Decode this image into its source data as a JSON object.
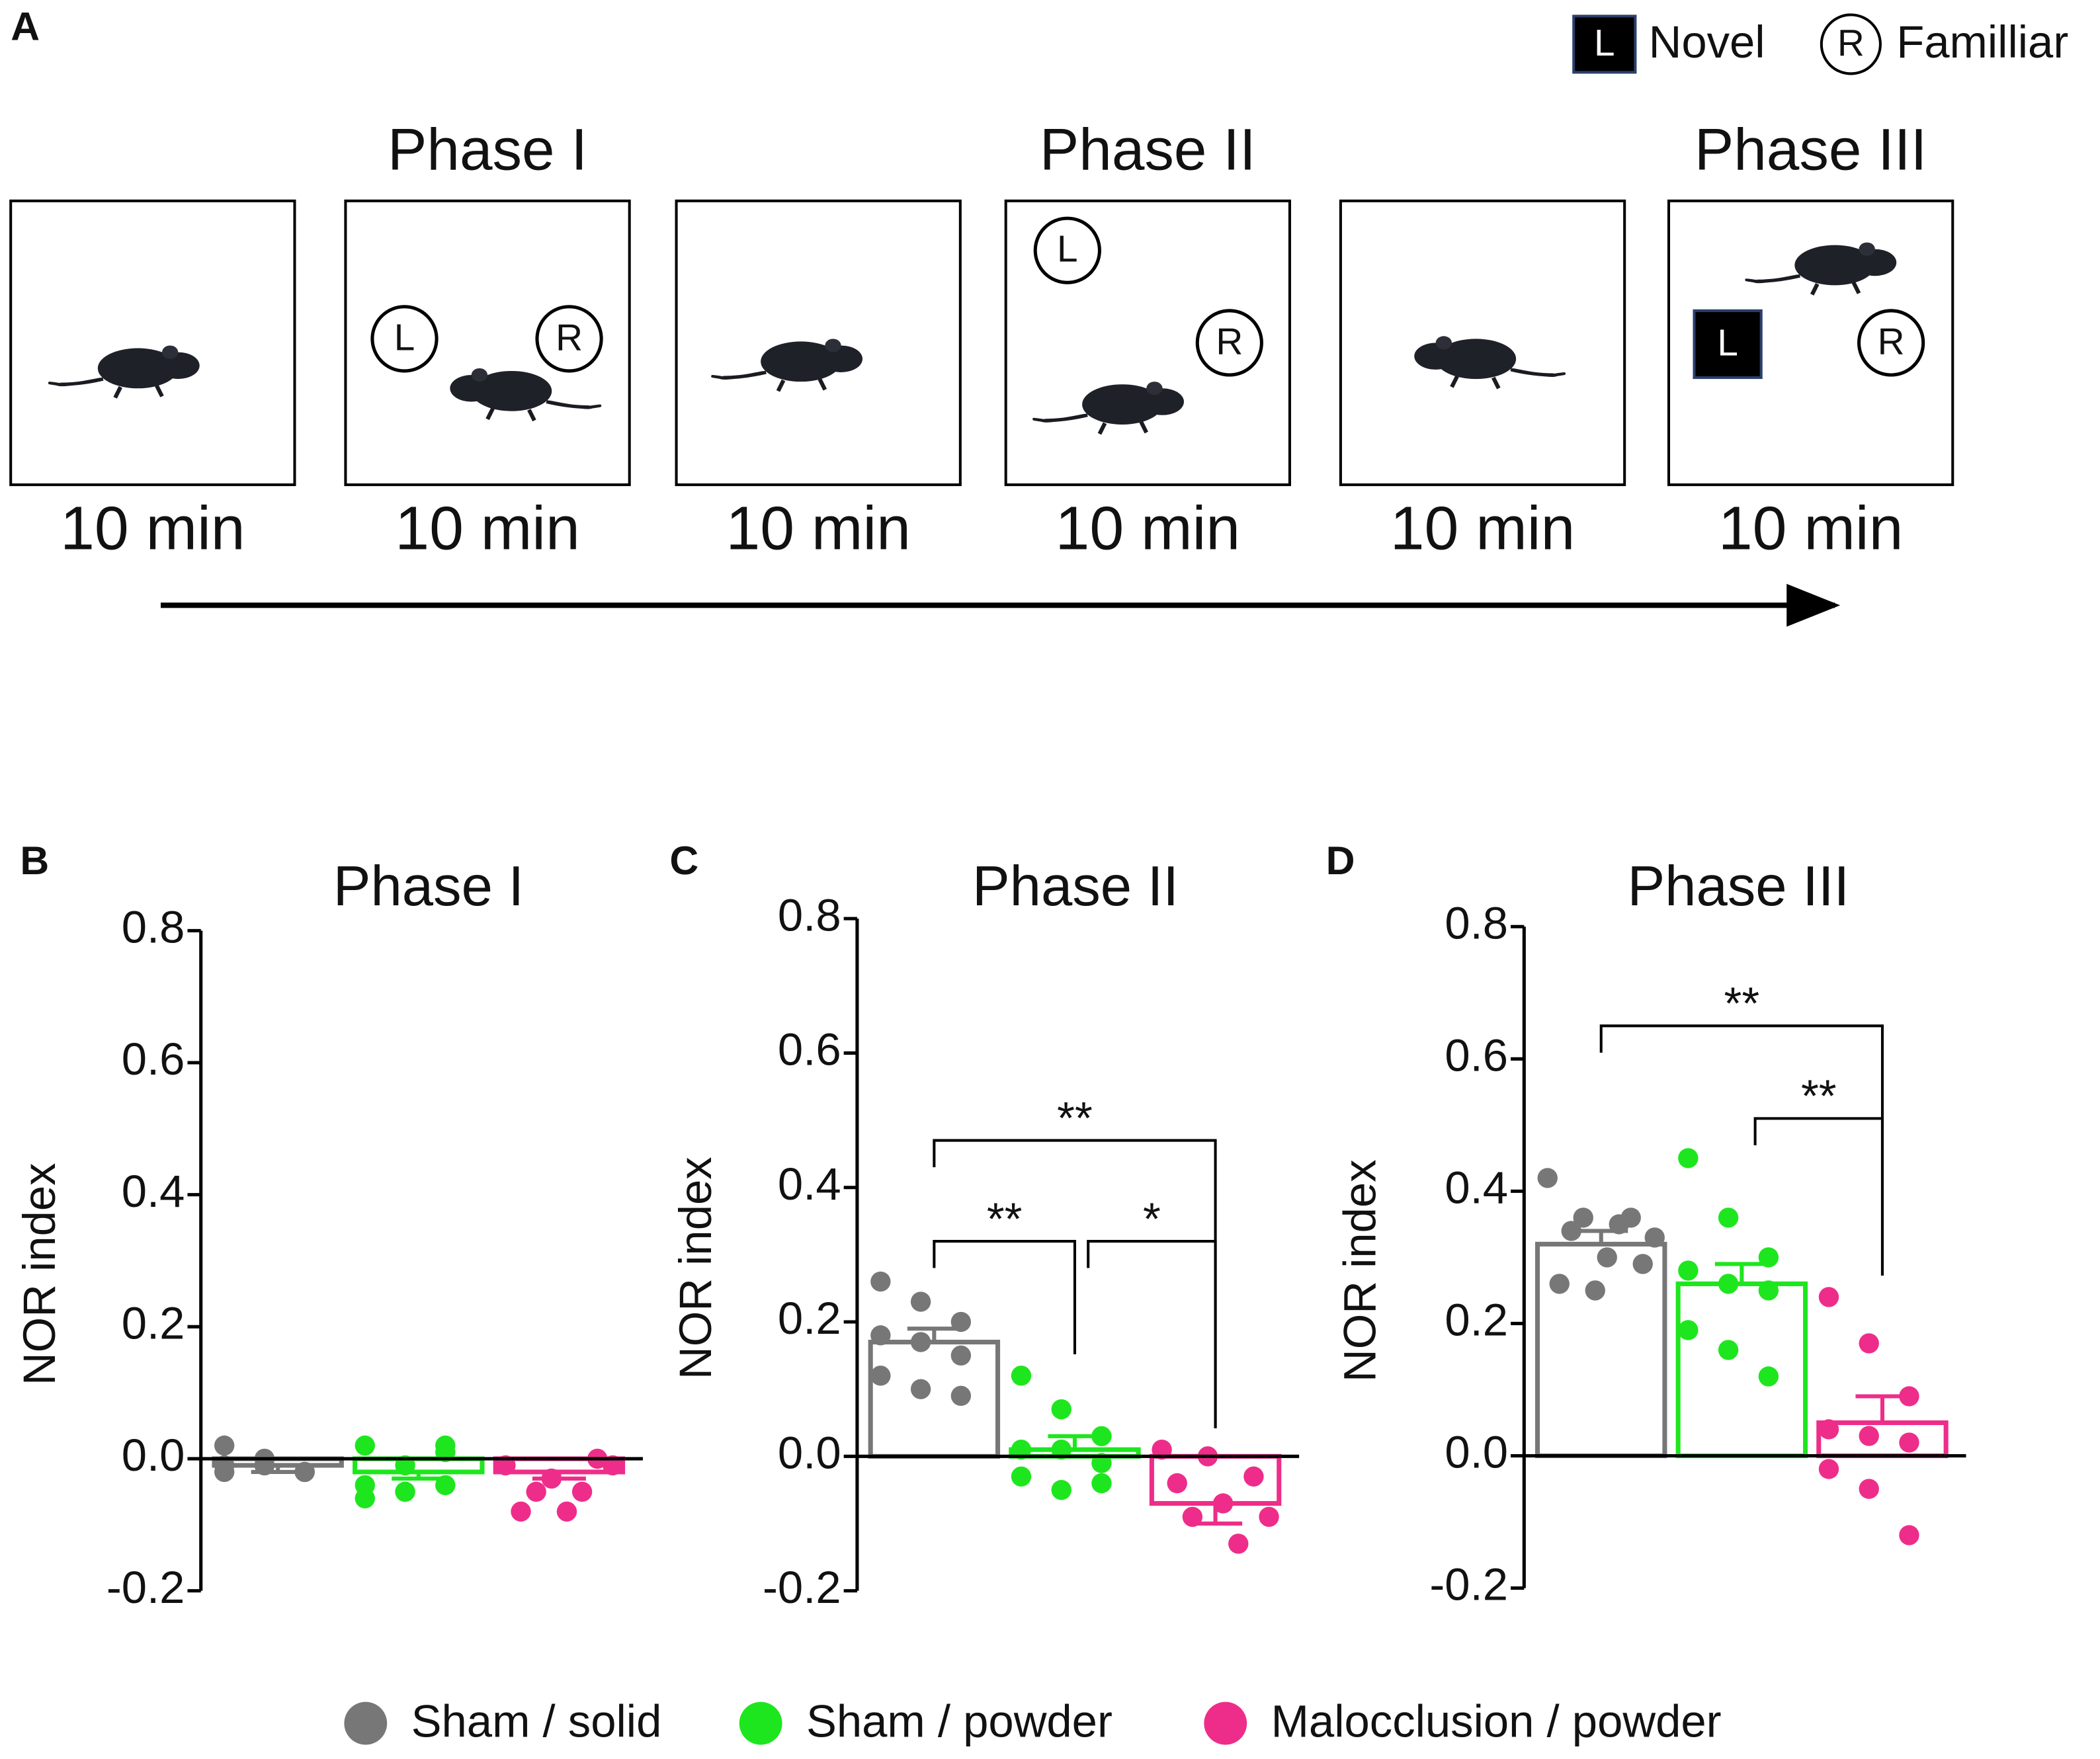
{
  "diagram": {
    "panel": "A",
    "legend": [
      {
        "symbol": "L",
        "label": "Novel",
        "shape": "square"
      },
      {
        "symbol": "R",
        "label": "Familliar",
        "shape": "circle"
      }
    ],
    "phases": [
      "Phase I",
      "Phase II",
      "Phase III"
    ],
    "boxes": [
      {
        "duration": "10 min",
        "objects": []
      },
      {
        "duration": "10 min",
        "objects": [
          {
            "label": "L",
            "shape": "circle"
          },
          {
            "label": "R",
            "shape": "circle"
          }
        ]
      },
      {
        "duration": "10 min",
        "objects": []
      },
      {
        "duration": "10 min",
        "objects": [
          {
            "label": "L",
            "shape": "circle"
          },
          {
            "label": "R",
            "shape": "circle"
          }
        ]
      },
      {
        "duration": "10 min",
        "objects": []
      },
      {
        "duration": "10 min",
        "objects": [
          {
            "label": "L",
            "shape": "square"
          },
          {
            "label": "R",
            "shape": "circle"
          }
        ]
      }
    ]
  },
  "legend": [
    {
      "name": "Sham / solid",
      "color": "#777777"
    },
    {
      "name": "Sham / powder",
      "color": "#1ee61e"
    },
    {
      "name": "Malocclusion / powder",
      "color": "#ee2d8a"
    }
  ],
  "chart_data": [
    {
      "type": "bar",
      "panel": "B",
      "title": "Phase I",
      "ylabel": "NOR index",
      "ylim": [
        -0.2,
        0.8
      ],
      "yticks": [
        -0.2,
        {
          "value": 0,
          "label": "0.0"
        },
        0.2,
        0.4,
        0.6,
        0.8
      ],
      "series": [
        {
          "values": [
            -0.01
          ],
          "errors": [
            0.01
          ],
          "points": [
            -0.02,
            -0.01,
            -0.02,
            -0.01,
            0,
            -0.02,
            0.02,
            -0.01,
            -0.02
          ]
        },
        {
          "values": [
            -0.02
          ],
          "errors": [
            0.01
          ],
          "points": [
            -0.06,
            -0.01,
            0.02,
            -0.04,
            -0.05,
            -0.04,
            0.02,
            -0.05,
            0.01
          ]
        },
        {
          "values": [
            -0.02
          ],
          "errors": [
            0.01
          ],
          "points": [
            -0.01,
            -0.03,
            0,
            -0.08,
            -0.08,
            -0.01,
            -0.05,
            -0.05
          ]
        }
      ],
      "annotations": []
    },
    {
      "type": "bar",
      "panel": "C",
      "title": "Phase II",
      "ylabel": "NOR index",
      "ylim": [
        -0.2,
        0.8
      ],
      "yticks": [
        -0.2,
        {
          "value": 0,
          "label": "0.0"
        },
        0.2,
        0.4,
        0.6,
        0.8
      ],
      "series": [
        {
          "values": [
            0.17
          ],
          "errors": [
            0.02
          ],
          "points": [
            0.26,
            0.23,
            0.2,
            0.18,
            0.17,
            0.15,
            0.12,
            0.1,
            0.09
          ]
        },
        {
          "values": [
            0.01
          ],
          "errors": [
            0.02
          ],
          "points": [
            0.12,
            0.07,
            0.03,
            0.01,
            0.01,
            -0.01,
            -0.03,
            -0.05,
            -0.04
          ]
        },
        {
          "values": [
            -0.07
          ],
          "errors": [
            0.03
          ],
          "points": [
            0.01,
            0,
            -0.03,
            -0.04,
            -0.07,
            -0.09,
            -0.09,
            -0.13
          ]
        }
      ],
      "annotations": [
        {
          "label": "**",
          "from": 0,
          "to": 2,
          "y": 0.47
        },
        {
          "label": "**",
          "from": 0,
          "to": 1,
          "y": 0.32
        },
        {
          "label": "*",
          "from": 1,
          "to": 2,
          "y": 0.32
        }
      ]
    },
    {
      "type": "bar",
      "panel": "D",
      "title": "Phase III",
      "ylabel": "NOR index",
      "ylim": [
        -0.2,
        0.8
      ],
      "yticks": [
        -0.2,
        {
          "value": 0,
          "label": "0.0"
        },
        0.2,
        0.4,
        0.6,
        0.8
      ],
      "series": [
        {
          "values": [
            0.32
          ],
          "errors": [
            0.02
          ],
          "points": [
            0.42,
            0.36,
            0.35,
            0.33,
            0.34,
            0.3,
            0.29,
            0.26,
            0.25,
            0.36
          ]
        },
        {
          "values": [
            0.26
          ],
          "errors": [
            0.03
          ],
          "points": [
            0.45,
            0.36,
            0.3,
            0.28,
            0.26,
            0.25,
            0.19,
            0.16,
            0.12
          ]
        },
        {
          "values": [
            0.05
          ],
          "errors": [
            0.04
          ],
          "points": [
            0.24,
            0.17,
            0.09,
            0.04,
            0.03,
            0.02,
            -0.02,
            -0.05,
            -0.12
          ]
        }
      ],
      "annotations": [
        {
          "label": "**",
          "from": 0,
          "to": 2,
          "y": 0.65
        },
        {
          "label": "**",
          "from": 1,
          "to": 2,
          "y": 0.51
        }
      ]
    }
  ]
}
